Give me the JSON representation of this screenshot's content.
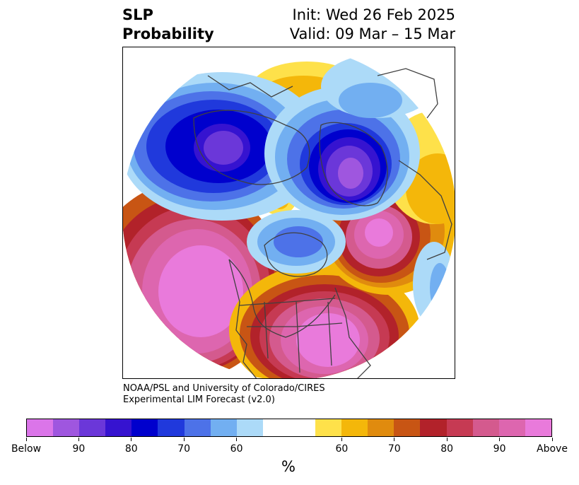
{
  "title": {
    "left_line1": "SLP",
    "left_line2": "Probability",
    "right_line1": "Init: Wed 26 Feb 2025",
    "right_line2": "Valid: 09 Mar – 15 Mar"
  },
  "credit": {
    "line1": "NOAA/PSL and University of Colorado/CIRES",
    "line2": "Experimental LIM Forecast (v2.0)"
  },
  "colorbar": {
    "colors": [
      "#db75e9",
      "#9f56df",
      "#6b37d9",
      "#3613d0",
      "#0000cd",
      "#2039dc",
      "#4d72e8",
      "#72aff1",
      "#acdaf8",
      "#ffffff",
      "#ffffff",
      "#fee14a",
      "#f4b70a",
      "#e08b0e",
      "#c85514",
      "#b2222a",
      "#c63a53",
      "#d45a8e",
      "#dd66af",
      "#e97adb"
    ],
    "tick_labels": [
      "Below",
      "90",
      "80",
      "70",
      "60",
      "60",
      "70",
      "80",
      "90",
      "Above"
    ],
    "unit": "%"
  },
  "map": {
    "colors": {
      "p_above": "#e97adb",
      "p90": "#dd66af",
      "p85": "#d45a8e",
      "p80": "#c63a53",
      "p75": "#b2222a",
      "p70": "#c85514",
      "p65": "#e08b0e",
      "p60": "#f4b70a",
      "p55": "#fee14a",
      "n55": "#acdaf8",
      "n60": "#72aff1",
      "n65": "#4d72e8",
      "n70": "#2039dc",
      "n75": "#0000cd",
      "n80": "#3613d0",
      "n85": "#6b37d9",
      "n_below": "#9f56df",
      "coast": "#404040"
    }
  }
}
